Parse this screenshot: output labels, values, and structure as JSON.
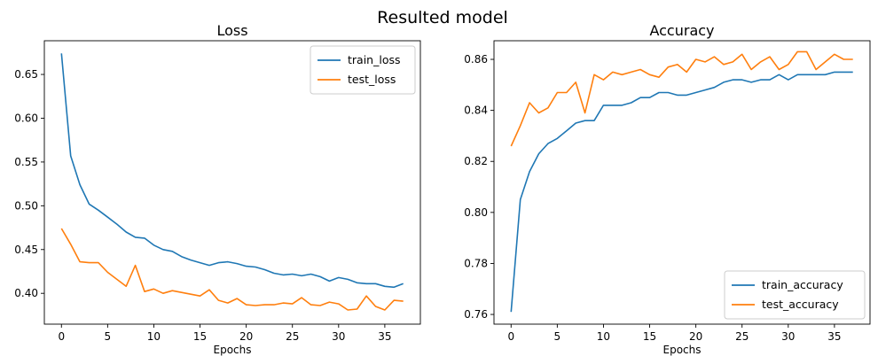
{
  "figure_title": "Resulted model",
  "chart_data": [
    {
      "type": "line",
      "title": "Loss",
      "xlabel": "Epochs",
      "ylabel": "",
      "xlim": [
        -1.85,
        38.85
      ],
      "ylim": [
        0.3648,
        0.6885
      ],
      "xticks": [
        0,
        5,
        10,
        15,
        20,
        25,
        30,
        35
      ],
      "yticks": [
        0.4,
        0.45,
        0.5,
        0.55,
        0.6,
        0.65
      ],
      "ytick_labels": [
        "0.40",
        "0.45",
        "0.50",
        "0.55",
        "0.60",
        "0.65"
      ],
      "grid": false,
      "legend_position": "upper right",
      "series": [
        {
          "name": "train_loss",
          "color": "#1f77b4",
          "x": [
            0,
            1,
            2,
            3,
            4,
            5,
            6,
            7,
            8,
            9,
            10,
            11,
            12,
            13,
            14,
            15,
            16,
            17,
            18,
            19,
            20,
            21,
            22,
            23,
            24,
            25,
            26,
            27,
            28,
            29,
            30,
            31,
            32,
            33,
            34,
            35,
            36,
            37
          ],
          "values": [
            0.674,
            0.557,
            0.524,
            0.502,
            0.495,
            0.487,
            0.479,
            0.47,
            0.464,
            0.463,
            0.455,
            0.45,
            0.448,
            0.442,
            0.438,
            0.435,
            0.432,
            0.435,
            0.436,
            0.434,
            0.431,
            0.43,
            0.427,
            0.423,
            0.421,
            0.422,
            0.42,
            0.422,
            0.419,
            0.414,
            0.418,
            0.416,
            0.412,
            0.411,
            0.411,
            0.408,
            0.407,
            0.411
          ]
        },
        {
          "name": "test_loss",
          "color": "#ff7f0e",
          "x": [
            0,
            1,
            2,
            3,
            4,
            5,
            6,
            7,
            8,
            9,
            10,
            11,
            12,
            13,
            14,
            15,
            16,
            17,
            18,
            19,
            20,
            21,
            22,
            23,
            24,
            25,
            26,
            27,
            28,
            29,
            30,
            31,
            32,
            33,
            34,
            35,
            36,
            37
          ],
          "values": [
            0.474,
            0.456,
            0.436,
            0.435,
            0.435,
            0.424,
            0.416,
            0.408,
            0.432,
            0.402,
            0.405,
            0.4,
            0.403,
            0.401,
            0.399,
            0.397,
            0.404,
            0.392,
            0.389,
            0.394,
            0.387,
            0.386,
            0.387,
            0.387,
            0.389,
            0.388,
            0.395,
            0.387,
            0.386,
            0.39,
            0.388,
            0.381,
            0.382,
            0.397,
            0.385,
            0.381,
            0.392,
            0.391
          ]
        }
      ]
    },
    {
      "type": "line",
      "title": "Accuracy",
      "xlabel": "Epochs",
      "ylabel": "",
      "xlim": [
        -1.85,
        38.85
      ],
      "ylim": [
        0.7562,
        0.8673
      ],
      "xticks": [
        0,
        5,
        10,
        15,
        20,
        25,
        30,
        35
      ],
      "yticks": [
        0.76,
        0.78,
        0.8,
        0.82,
        0.84,
        0.86
      ],
      "ytick_labels": [
        "0.76",
        "0.78",
        "0.80",
        "0.82",
        "0.84",
        "0.86"
      ],
      "grid": false,
      "legend_position": "lower right",
      "series": [
        {
          "name": "train_accuracy",
          "color": "#1f77b4",
          "x": [
            0,
            1,
            2,
            3,
            4,
            5,
            6,
            7,
            8,
            9,
            10,
            11,
            12,
            13,
            14,
            15,
            16,
            17,
            18,
            19,
            20,
            21,
            22,
            23,
            24,
            25,
            26,
            27,
            28,
            29,
            30,
            31,
            32,
            33,
            34,
            35,
            36,
            37
          ],
          "values": [
            0.761,
            0.805,
            0.816,
            0.823,
            0.827,
            0.829,
            0.832,
            0.835,
            0.836,
            0.836,
            0.842,
            0.842,
            0.842,
            0.843,
            0.845,
            0.845,
            0.847,
            0.847,
            0.846,
            0.846,
            0.847,
            0.848,
            0.849,
            0.851,
            0.852,
            0.852,
            0.851,
            0.852,
            0.852,
            0.854,
            0.852,
            0.854,
            0.854,
            0.854,
            0.854,
            0.855,
            0.855,
            0.855
          ]
        },
        {
          "name": "test_accuracy",
          "color": "#ff7f0e",
          "x": [
            0,
            1,
            2,
            3,
            4,
            5,
            6,
            7,
            8,
            9,
            10,
            11,
            12,
            13,
            14,
            15,
            16,
            17,
            18,
            19,
            20,
            21,
            22,
            23,
            24,
            25,
            26,
            27,
            28,
            29,
            30,
            31,
            32,
            33,
            34,
            35,
            36,
            37
          ],
          "values": [
            0.826,
            0.834,
            0.843,
            0.839,
            0.841,
            0.847,
            0.847,
            0.851,
            0.839,
            0.854,
            0.852,
            0.855,
            0.854,
            0.855,
            0.856,
            0.854,
            0.853,
            0.857,
            0.858,
            0.855,
            0.86,
            0.859,
            0.861,
            0.858,
            0.859,
            0.862,
            0.856,
            0.859,
            0.861,
            0.856,
            0.858,
            0.863,
            0.863,
            0.856,
            0.859,
            0.862,
            0.86,
            0.86
          ]
        }
      ]
    }
  ]
}
